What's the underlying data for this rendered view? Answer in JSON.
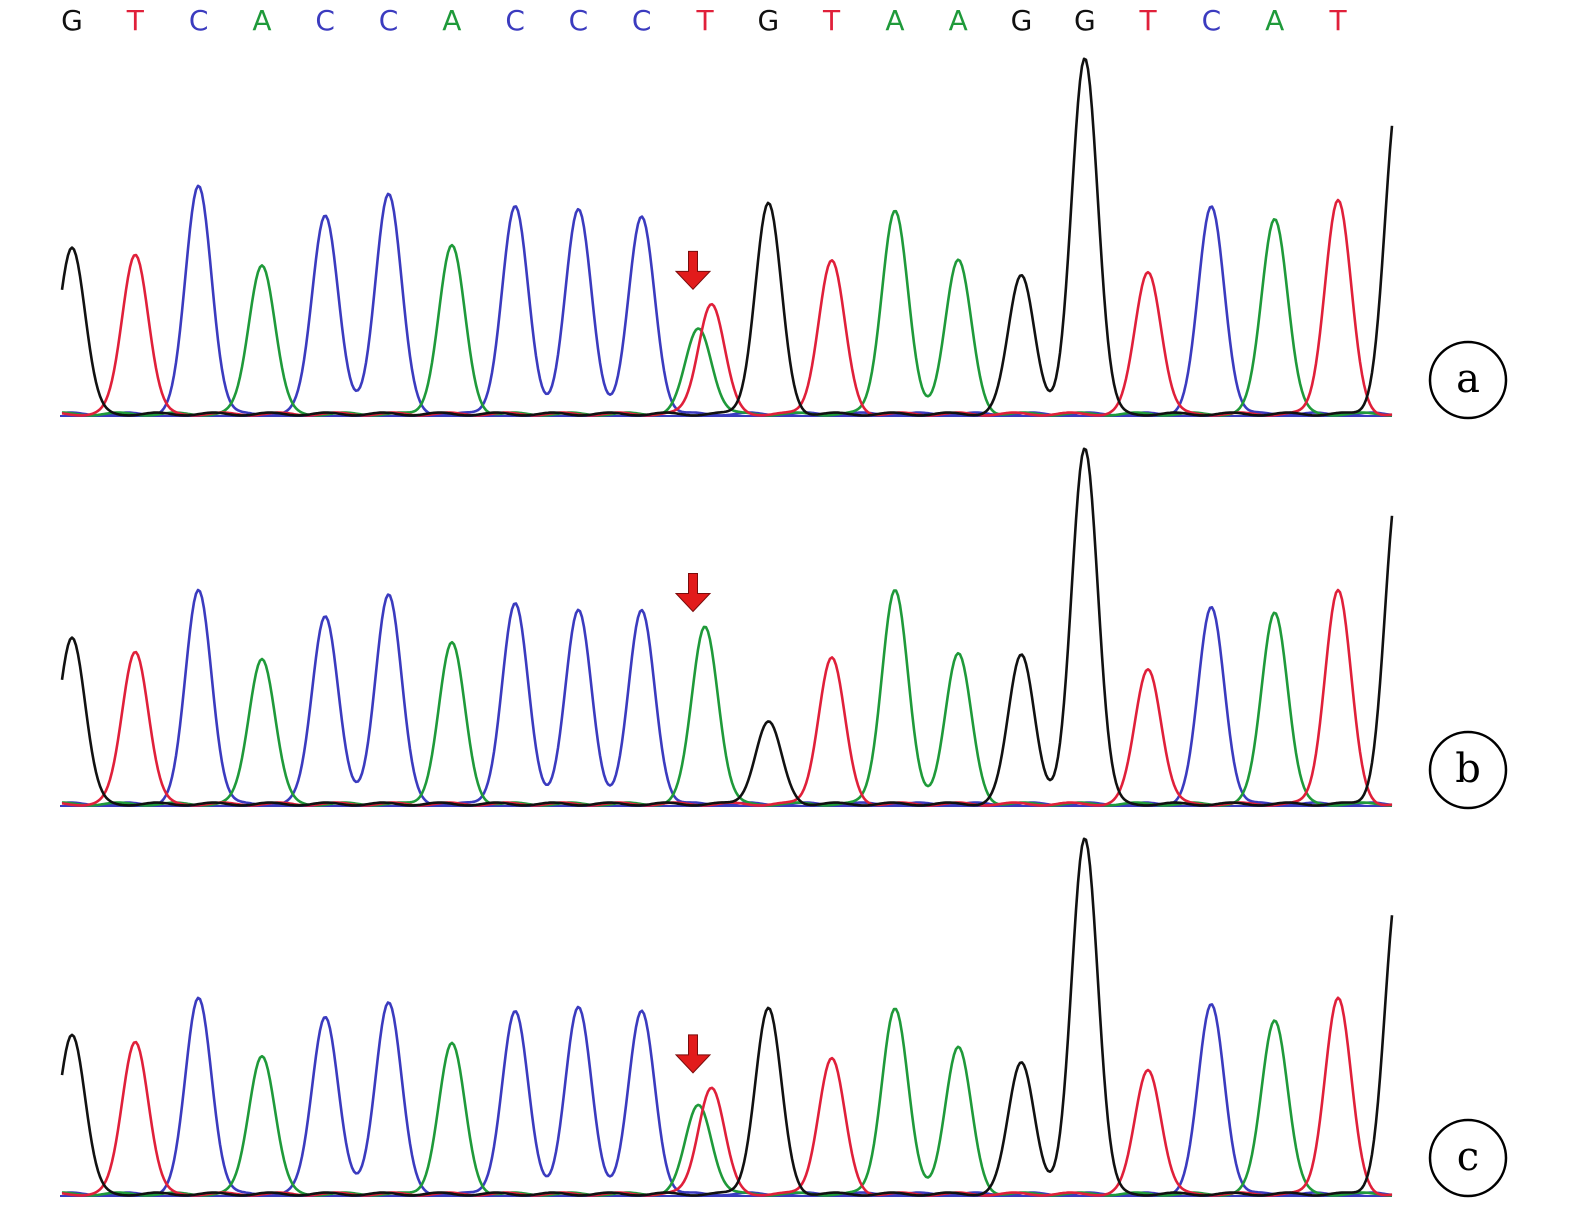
{
  "chart_data": {
    "type": "line",
    "sequence": [
      "G",
      "T",
      "C",
      "A",
      "C",
      "C",
      "A",
      "C",
      "C",
      "C",
      "T",
      "G",
      "T",
      "A",
      "A",
      "G",
      "G",
      "T",
      "C",
      "A",
      "T"
    ],
    "colors": {
      "A": "#1f9a3a",
      "C": "#3b3bbf",
      "G": "#111111",
      "T": "#e0203a",
      "arrow": "#e21b1b"
    },
    "arrow_position": 10,
    "panels": [
      {
        "label": "a",
        "peaks": [
          {
            "base": "G",
            "pos": 0.0,
            "h": 0.47
          },
          {
            "base": "T",
            "pos": 1.0,
            "h": 0.45
          },
          {
            "base": "C",
            "pos": 2.0,
            "h": 0.64
          },
          {
            "base": "A",
            "pos": 3.0,
            "h": 0.42
          },
          {
            "base": "C",
            "pos": 4.0,
            "h": 0.56
          },
          {
            "base": "C",
            "pos": 5.0,
            "h": 0.62
          },
          {
            "base": "A",
            "pos": 6.0,
            "h": 0.47
          },
          {
            "base": "C",
            "pos": 7.0,
            "h": 0.58
          },
          {
            "base": "C",
            "pos": 8.0,
            "h": 0.57
          },
          {
            "base": "C",
            "pos": 9.0,
            "h": 0.55
          },
          {
            "base": "A",
            "pos": 9.9,
            "h": 0.24
          },
          {
            "base": "T",
            "pos": 10.1,
            "h": 0.31
          },
          {
            "base": "G",
            "pos": 11.0,
            "h": 0.59
          },
          {
            "base": "T",
            "pos": 12.0,
            "h": 0.43
          },
          {
            "base": "A",
            "pos": 13.0,
            "h": 0.57
          },
          {
            "base": "A",
            "pos": 14.0,
            "h": 0.43
          },
          {
            "base": "G",
            "pos": 15.0,
            "h": 0.39
          },
          {
            "base": "G",
            "pos": 16.0,
            "h": 1.0
          },
          {
            "base": "T",
            "pos": 17.0,
            "h": 0.4
          },
          {
            "base": "C",
            "pos": 18.0,
            "h": 0.58
          },
          {
            "base": "A",
            "pos": 19.0,
            "h": 0.55
          },
          {
            "base": "T",
            "pos": 20.0,
            "h": 0.6
          },
          {
            "base": "G",
            "pos": 20.95,
            "h": 0.9
          }
        ]
      },
      {
        "label": "b",
        "peaks": [
          {
            "base": "G",
            "pos": 0.0,
            "h": 0.47
          },
          {
            "base": "T",
            "pos": 1.0,
            "h": 0.43
          },
          {
            "base": "C",
            "pos": 2.0,
            "h": 0.6
          },
          {
            "base": "A",
            "pos": 3.0,
            "h": 0.41
          },
          {
            "base": "C",
            "pos": 4.0,
            "h": 0.53
          },
          {
            "base": "C",
            "pos": 5.0,
            "h": 0.59
          },
          {
            "base": "A",
            "pos": 6.0,
            "h": 0.45
          },
          {
            "base": "C",
            "pos": 7.0,
            "h": 0.56
          },
          {
            "base": "C",
            "pos": 8.0,
            "h": 0.54
          },
          {
            "base": "C",
            "pos": 9.0,
            "h": 0.54
          },
          {
            "base": "A",
            "pos": 10.0,
            "h": 0.5
          },
          {
            "base": "G",
            "pos": 11.0,
            "h": 0.23
          },
          {
            "base": "T",
            "pos": 12.0,
            "h": 0.41
          },
          {
            "base": "A",
            "pos": 13.0,
            "h": 0.6
          },
          {
            "base": "A",
            "pos": 14.0,
            "h": 0.42
          },
          {
            "base": "G",
            "pos": 15.0,
            "h": 0.42
          },
          {
            "base": "G",
            "pos": 16.0,
            "h": 1.0
          },
          {
            "base": "T",
            "pos": 17.0,
            "h": 0.38
          },
          {
            "base": "C",
            "pos": 18.0,
            "h": 0.55
          },
          {
            "base": "A",
            "pos": 19.0,
            "h": 0.54
          },
          {
            "base": "T",
            "pos": 20.0,
            "h": 0.6
          },
          {
            "base": "G",
            "pos": 20.95,
            "h": 0.9
          }
        ]
      },
      {
        "label": "c",
        "peaks": [
          {
            "base": "G",
            "pos": 0.0,
            "h": 0.45
          },
          {
            "base": "T",
            "pos": 1.0,
            "h": 0.43
          },
          {
            "base": "C",
            "pos": 2.0,
            "h": 0.55
          },
          {
            "base": "A",
            "pos": 3.0,
            "h": 0.39
          },
          {
            "base": "C",
            "pos": 4.0,
            "h": 0.5
          },
          {
            "base": "C",
            "pos": 5.0,
            "h": 0.54
          },
          {
            "base": "A",
            "pos": 6.0,
            "h": 0.42
          },
          {
            "base": "C",
            "pos": 7.0,
            "h": 0.51
          },
          {
            "base": "C",
            "pos": 8.0,
            "h": 0.52
          },
          {
            "base": "C",
            "pos": 9.0,
            "h": 0.51
          },
          {
            "base": "A",
            "pos": 9.9,
            "h": 0.25
          },
          {
            "base": "T",
            "pos": 10.1,
            "h": 0.3
          },
          {
            "base": "G",
            "pos": 11.0,
            "h": 0.52
          },
          {
            "base": "T",
            "pos": 12.0,
            "h": 0.38
          },
          {
            "base": "A",
            "pos": 13.0,
            "h": 0.52
          },
          {
            "base": "A",
            "pos": 14.0,
            "h": 0.41
          },
          {
            "base": "G",
            "pos": 15.0,
            "h": 0.37
          },
          {
            "base": "G",
            "pos": 16.0,
            "h": 1.0
          },
          {
            "base": "T",
            "pos": 17.0,
            "h": 0.35
          },
          {
            "base": "C",
            "pos": 18.0,
            "h": 0.53
          },
          {
            "base": "A",
            "pos": 19.0,
            "h": 0.49
          },
          {
            "base": "T",
            "pos": 20.0,
            "h": 0.55
          },
          {
            "base": "G",
            "pos": 20.95,
            "h": 0.87
          }
        ]
      }
    ]
  }
}
